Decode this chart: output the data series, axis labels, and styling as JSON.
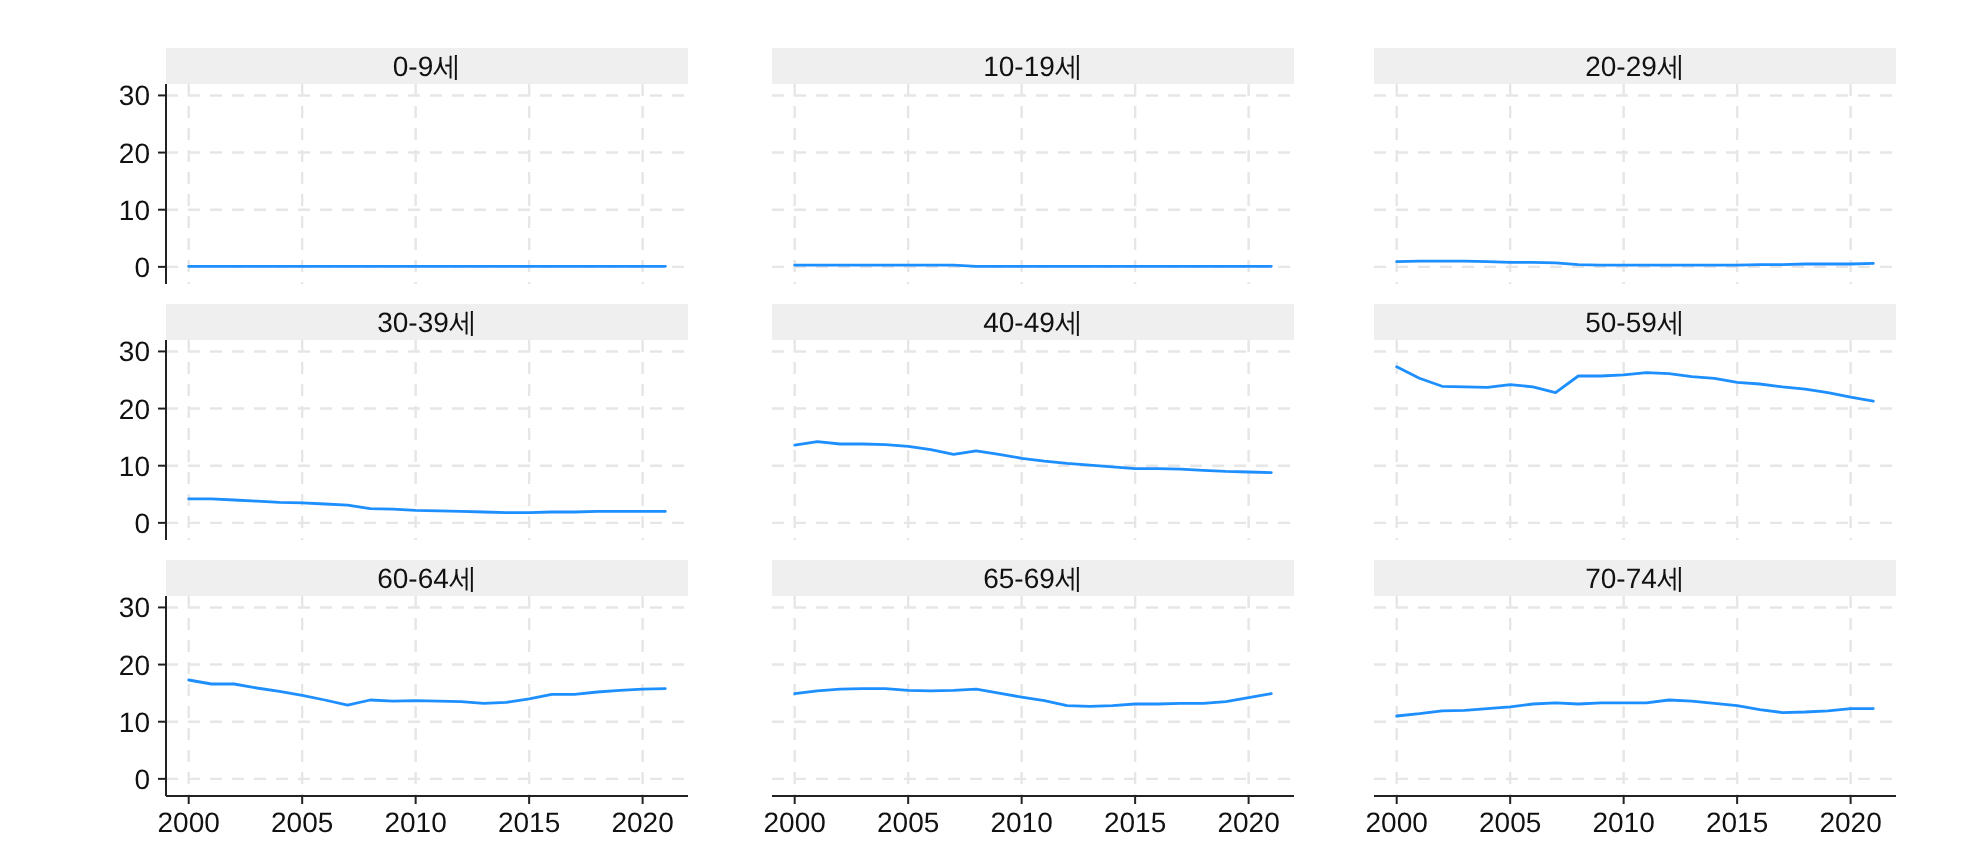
{
  "chart_data": [
    {
      "type": "line",
      "title": "0-9세",
      "x": [
        2000,
        2001,
        2002,
        2003,
        2004,
        2005,
        2006,
        2007,
        2008,
        2009,
        2010,
        2011,
        2012,
        2013,
        2014,
        2015,
        2016,
        2017,
        2018,
        2019,
        2020,
        2021
      ],
      "series": [
        {
          "color": "#1e8fff",
          "values": [
            0.1,
            0.1,
            0.1,
            0.1,
            0.1,
            0.1,
            0.1,
            0.1,
            0.1,
            0.1,
            0.1,
            0.1,
            0.1,
            0.1,
            0.1,
            0.1,
            0.1,
            0.1,
            0.1,
            0.1,
            0.1,
            0.1
          ]
        }
      ],
      "xlim": [
        1999,
        2022
      ],
      "ylim": [
        -3,
        32
      ],
      "xticks": [
        2000,
        2005,
        2010,
        2015,
        2020
      ],
      "yticks": [
        0,
        10,
        20,
        30
      ],
      "grid": true,
      "tick_labels": "y"
    },
    {
      "type": "line",
      "title": "10-19세",
      "x": [
        2000,
        2001,
        2002,
        2003,
        2004,
        2005,
        2006,
        2007,
        2008,
        2009,
        2010,
        2011,
        2012,
        2013,
        2014,
        2015,
        2016,
        2017,
        2018,
        2019,
        2020,
        2021
      ],
      "series": [
        {
          "color": "#1e8fff",
          "values": [
            0.3,
            0.3,
            0.3,
            0.3,
            0.3,
            0.3,
            0.3,
            0.3,
            0.1,
            0.1,
            0.1,
            0.1,
            0.1,
            0.1,
            0.1,
            0.1,
            0.1,
            0.1,
            0.1,
            0.1,
            0.1,
            0.1
          ]
        }
      ],
      "xlim": [
        1999,
        2022
      ],
      "ylim": [
        -3,
        32
      ],
      "xticks": [
        2000,
        2005,
        2010,
        2015,
        2020
      ],
      "yticks": [
        0,
        10,
        20,
        30
      ],
      "grid": true,
      "tick_labels": false
    },
    {
      "type": "line",
      "title": "20-29세",
      "x": [
        2000,
        2001,
        2002,
        2003,
        2004,
        2005,
        2006,
        2007,
        2008,
        2009,
        2010,
        2011,
        2012,
        2013,
        2014,
        2015,
        2016,
        2017,
        2018,
        2019,
        2020,
        2021
      ],
      "series": [
        {
          "color": "#1e8fff",
          "values": [
            0.9,
            1.0,
            1.0,
            1.0,
            0.9,
            0.8,
            0.8,
            0.7,
            0.4,
            0.3,
            0.3,
            0.3,
            0.3,
            0.3,
            0.3,
            0.3,
            0.4,
            0.4,
            0.5,
            0.5,
            0.5,
            0.6
          ]
        }
      ],
      "xlim": [
        1999,
        2022
      ],
      "ylim": [
        -3,
        32
      ],
      "xticks": [
        2000,
        2005,
        2010,
        2015,
        2020
      ],
      "yticks": [
        0,
        10,
        20,
        30
      ],
      "grid": true,
      "tick_labels": false
    },
    {
      "type": "line",
      "title": "30-39세",
      "x": [
        2000,
        2001,
        2002,
        2003,
        2004,
        2005,
        2006,
        2007,
        2008,
        2009,
        2010,
        2011,
        2012,
        2013,
        2014,
        2015,
        2016,
        2017,
        2018,
        2019,
        2020,
        2021
      ],
      "series": [
        {
          "color": "#1e8fff",
          "values": [
            4.2,
            4.2,
            4.0,
            3.8,
            3.6,
            3.5,
            3.3,
            3.1,
            2.5,
            2.4,
            2.2,
            2.1,
            2.0,
            1.9,
            1.8,
            1.8,
            1.9,
            1.9,
            2.0,
            2.0,
            2.0,
            2.0
          ]
        }
      ],
      "xlim": [
        1999,
        2022
      ],
      "ylim": [
        -3,
        32
      ],
      "xticks": [
        2000,
        2005,
        2010,
        2015,
        2020
      ],
      "yticks": [
        0,
        10,
        20,
        30
      ],
      "grid": true,
      "tick_labels": "y"
    },
    {
      "type": "line",
      "title": "40-49세",
      "x": [
        2000,
        2001,
        2002,
        2003,
        2004,
        2005,
        2006,
        2007,
        2008,
        2009,
        2010,
        2011,
        2012,
        2013,
        2014,
        2015,
        2016,
        2017,
        2018,
        2019,
        2020,
        2021
      ],
      "series": [
        {
          "color": "#1e8fff",
          "values": [
            13.6,
            14.2,
            13.8,
            13.8,
            13.7,
            13.4,
            12.8,
            12.0,
            12.6,
            12.0,
            11.3,
            10.8,
            10.4,
            10.1,
            9.8,
            9.5,
            9.5,
            9.4,
            9.2,
            9.0,
            8.9,
            8.8
          ]
        }
      ],
      "xlim": [
        1999,
        2022
      ],
      "ylim": [
        -3,
        32
      ],
      "xticks": [
        2000,
        2005,
        2010,
        2015,
        2020
      ],
      "yticks": [
        0,
        10,
        20,
        30
      ],
      "grid": true,
      "tick_labels": false
    },
    {
      "type": "line",
      "title": "50-59세",
      "x": [
        2000,
        2001,
        2002,
        2003,
        2004,
        2005,
        2006,
        2007,
        2008,
        2009,
        2010,
        2011,
        2012,
        2013,
        2014,
        2015,
        2016,
        2017,
        2018,
        2019,
        2020,
        2021
      ],
      "series": [
        {
          "color": "#1e8fff",
          "values": [
            27.3,
            25.3,
            23.9,
            23.8,
            23.7,
            24.2,
            23.8,
            22.8,
            25.7,
            25.7,
            25.9,
            26.3,
            26.1,
            25.6,
            25.3,
            24.6,
            24.3,
            23.8,
            23.4,
            22.8,
            22.0,
            21.3
          ]
        }
      ],
      "xlim": [
        1999,
        2022
      ],
      "ylim": [
        -3,
        32
      ],
      "xticks": [
        2000,
        2005,
        2010,
        2015,
        2020
      ],
      "yticks": [
        0,
        10,
        20,
        30
      ],
      "grid": true,
      "tick_labels": false
    },
    {
      "type": "line",
      "title": "60-64세",
      "x": [
        2000,
        2001,
        2002,
        2003,
        2004,
        2005,
        2006,
        2007,
        2008,
        2009,
        2010,
        2011,
        2012,
        2013,
        2014,
        2015,
        2016,
        2017,
        2018,
        2019,
        2020,
        2021
      ],
      "series": [
        {
          "color": "#1e8fff",
          "values": [
            17.3,
            16.6,
            16.6,
            15.9,
            15.3,
            14.6,
            13.8,
            12.9,
            13.8,
            13.6,
            13.7,
            13.6,
            13.5,
            13.2,
            13.4,
            14.0,
            14.8,
            14.8,
            15.2,
            15.5,
            15.7,
            15.8
          ]
        }
      ],
      "xlim": [
        1999,
        2022
      ],
      "ylim": [
        -3,
        32
      ],
      "xticks": [
        2000,
        2005,
        2010,
        2015,
        2020
      ],
      "yticks": [
        0,
        10,
        20,
        30
      ],
      "grid": true
    },
    {
      "type": "line",
      "title": "65-69세",
      "x": [
        2000,
        2001,
        2002,
        2003,
        2004,
        2005,
        2006,
        2007,
        2008,
        2009,
        2010,
        2011,
        2012,
        2013,
        2014,
        2015,
        2016,
        2017,
        2018,
        2019,
        2020,
        2021
      ],
      "series": [
        {
          "color": "#1e8fff",
          "values": [
            14.9,
            15.4,
            15.7,
            15.8,
            15.8,
            15.5,
            15.4,
            15.5,
            15.7,
            15.0,
            14.3,
            13.7,
            12.8,
            12.7,
            12.8,
            13.1,
            13.1,
            13.2,
            13.2,
            13.5,
            14.2,
            14.9
          ]
        }
      ],
      "xlim": [
        1999,
        2022
      ],
      "ylim": [
        -3,
        32
      ],
      "xticks": [
        2000,
        2005,
        2010,
        2015,
        2020
      ],
      "yticks": [
        0,
        10,
        20,
        30
      ],
      "grid": true,
      "tick_labels": "x"
    },
    {
      "type": "line",
      "title": "70-74세",
      "x": [
        2000,
        2001,
        2002,
        2003,
        2004,
        2005,
        2006,
        2007,
        2008,
        2009,
        2010,
        2011,
        2012,
        2013,
        2014,
        2015,
        2016,
        2017,
        2018,
        2019,
        2020,
        2021
      ],
      "series": [
        {
          "color": "#1e8fff",
          "values": [
            11.0,
            11.4,
            11.9,
            12.0,
            12.3,
            12.6,
            13.1,
            13.3,
            13.1,
            13.3,
            13.3,
            13.3,
            13.8,
            13.6,
            13.2,
            12.8,
            12.1,
            11.6,
            11.7,
            11.9,
            12.3,
            12.3
          ]
        }
      ],
      "xlim": [
        1999,
        2022
      ],
      "ylim": [
        -3,
        32
      ],
      "xticks": [
        2000,
        2005,
        2010,
        2015,
        2020
      ],
      "yticks": [
        0,
        10,
        20,
        30
      ],
      "grid": true,
      "tick_labels": "x"
    }
  ]
}
